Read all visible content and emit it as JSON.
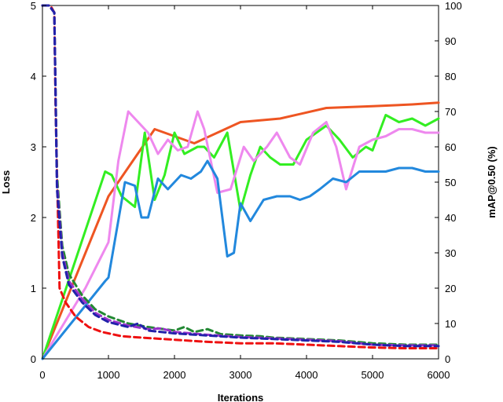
{
  "chart_data": {
    "type": "line",
    "xlabel": "Iterations",
    "ylabel_left": "Loss",
    "ylabel_right": "mAP@0.50 (%)",
    "xlim": [
      0,
      6000
    ],
    "ylim_left": [
      0,
      5
    ],
    "ylim_right": [
      0,
      100
    ],
    "x_ticks": [
      0,
      1000,
      2000,
      3000,
      4000,
      5000,
      6000
    ],
    "y_left_ticks": [
      0,
      1,
      2,
      3,
      4,
      5
    ],
    "y_right_ticks": [
      0,
      10,
      20,
      30,
      40,
      50,
      60,
      70,
      80,
      90,
      100
    ],
    "grid": false,
    "series": [
      {
        "axis": "right",
        "style": "solid",
        "color": "#ee5522",
        "x": [
          0,
          1000,
          1700,
          2300,
          3000,
          3600,
          4300,
          5000,
          5600,
          6000
        ],
        "y": [
          0,
          46,
          65,
          61,
          67,
          68,
          71,
          71.5,
          72,
          72.5
        ]
      },
      {
        "axis": "right",
        "style": "solid",
        "color": "#33ee22",
        "x": [
          0,
          950,
          1050,
          1200,
          1400,
          1550,
          1700,
          1850,
          2000,
          2150,
          2350,
          2450,
          2600,
          2800,
          3000,
          3150,
          3300,
          3450,
          3600,
          3800,
          4000,
          4150,
          4300,
          4500,
          4700,
          4900,
          5000,
          5200,
          5400,
          5600,
          5800,
          6000
        ],
        "y": [
          0,
          53,
          52,
          46,
          43,
          64,
          45,
          52,
          64,
          58,
          60,
          60,
          57,
          64,
          42,
          52,
          60,
          57,
          55,
          55,
          62,
          64,
          66,
          62,
          57,
          60,
          59,
          69,
          67,
          68,
          66,
          68
        ]
      },
      {
        "axis": "right",
        "style": "solid",
        "color": "#ee88ee",
        "x": [
          0,
          650,
          1000,
          1150,
          1300,
          1450,
          1600,
          1750,
          1900,
          2050,
          2200,
          2350,
          2450,
          2650,
          2850,
          3050,
          3200,
          3400,
          3550,
          3750,
          3900,
          4100,
          4300,
          4450,
          4600,
          4800,
          5000,
          5200,
          5400,
          5600,
          5800,
          6000
        ],
        "y": [
          0,
          20,
          33,
          56,
          70,
          67,
          64,
          58,
          62,
          59,
          60,
          70,
          65,
          47,
          48,
          60,
          56,
          60,
          64,
          57,
          55,
          64,
          67,
          60,
          48,
          60,
          62,
          63,
          65,
          65,
          64,
          64
        ]
      },
      {
        "axis": "right",
        "style": "solid",
        "color": "#2288dd",
        "x": [
          0,
          950,
          1000,
          1250,
          1400,
          1500,
          1600,
          1750,
          1900,
          2100,
          2250,
          2400,
          2500,
          2650,
          2800,
          2900,
          3000,
          3150,
          3350,
          3550,
          3750,
          3900,
          4050,
          4200,
          4400,
          4600,
          4800,
          5000,
          5200,
          5400,
          5600,
          5800,
          6000
        ],
        "y": [
          0,
          22,
          23,
          50,
          49,
          40,
          40,
          51,
          48,
          52,
          51,
          53,
          56,
          51,
          29,
          30,
          44,
          39,
          45,
          46,
          46,
          45,
          46,
          48,
          51,
          50,
          53,
          53,
          53,
          54,
          54,
          53,
          53
        ]
      },
      {
        "axis": "left",
        "style": "dashed",
        "color": "#ee1111",
        "x": [
          0,
          120,
          180,
          200,
          260,
          350,
          500,
          700,
          900,
          1200,
          1500,
          2000,
          2500,
          3000,
          3500,
          4000,
          4500,
          5000,
          5500,
          6000
        ],
        "y": [
          5,
          5,
          4.9,
          3.5,
          1.0,
          0.8,
          0.6,
          0.45,
          0.38,
          0.32,
          0.3,
          0.27,
          0.24,
          0.22,
          0.22,
          0.2,
          0.18,
          0.16,
          0.15,
          0.15
        ]
      },
      {
        "axis": "left",
        "style": "dashed",
        "color": "#228833",
        "x": [
          0,
          100,
          180,
          220,
          300,
          400,
          600,
          800,
          1000,
          1300,
          1600,
          2000,
          2150,
          2300,
          2500,
          2700,
          3000,
          3300,
          3500,
          4000,
          4500,
          5000,
          5500,
          6000
        ],
        "y": [
          5,
          5,
          4.9,
          2.6,
          1.6,
          1.2,
          0.9,
          0.7,
          0.6,
          0.5,
          0.45,
          0.4,
          0.45,
          0.38,
          0.42,
          0.35,
          0.33,
          0.32,
          0.3,
          0.28,
          0.26,
          0.22,
          0.2,
          0.2
        ]
      },
      {
        "axis": "left",
        "style": "dashed",
        "color": "#9933cc",
        "x": [
          0,
          100,
          180,
          220,
          300,
          400,
          600,
          800,
          1000,
          1300,
          1600,
          1800,
          2000,
          2500,
          3000,
          3500,
          4000,
          4500,
          5000,
          5500,
          6000
        ],
        "y": [
          5,
          5,
          4.9,
          2.5,
          1.5,
          1.1,
          0.85,
          0.65,
          0.55,
          0.47,
          0.42,
          0.43,
          0.38,
          0.34,
          0.31,
          0.29,
          0.27,
          0.25,
          0.2,
          0.19,
          0.19
        ]
      },
      {
        "axis": "left",
        "style": "dashed",
        "color": "#2222aa",
        "x": [
          0,
          100,
          180,
          220,
          300,
          400,
          600,
          800,
          1000,
          1300,
          1450,
          1600,
          2000,
          2500,
          3000,
          3500,
          4000,
          4500,
          5000,
          5500,
          6000
        ],
        "y": [
          5,
          5,
          4.9,
          2.4,
          1.45,
          1.05,
          0.8,
          0.62,
          0.52,
          0.45,
          0.5,
          0.4,
          0.36,
          0.33,
          0.3,
          0.28,
          0.26,
          0.24,
          0.2,
          0.18,
          0.18
        ]
      }
    ]
  }
}
